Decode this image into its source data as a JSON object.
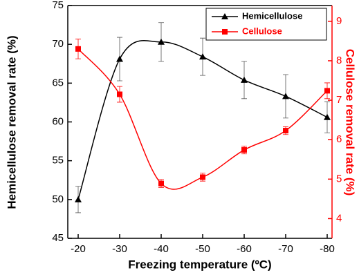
{
  "chart_data": {
    "type": "line",
    "x_label": "Freezing temperature (ºC)",
    "y_label": "Hemicellulose removal rate (%)",
    "y2_label": "Cellulose removal rate (%)",
    "categories": [
      "-20",
      "-30",
      "-40",
      "-50",
      "-60",
      "-70",
      "-80"
    ],
    "series": [
      {
        "name": "Hemicellulose",
        "color": "#000000",
        "marker": "triangle",
        "values": [
          50.0,
          68.1,
          70.3,
          68.4,
          65.4,
          63.3,
          60.6
        ],
        "errors": [
          1.7,
          2.8,
          2.5,
          2.4,
          2.4,
          2.8,
          2.0
        ]
      },
      {
        "name": "Cellulose",
        "color": "#ff0000",
        "marker": "square",
        "axis": "y2",
        "values": [
          8.3,
          7.15,
          4.89,
          5.05,
          5.74,
          6.23,
          7.24
        ],
        "errors": [
          0.25,
          0.2,
          0.1,
          0.1,
          0.1,
          0.1,
          0.2
        ]
      }
    ],
    "ylim": [
      45,
      75
    ],
    "yticks": [
      45,
      50,
      55,
      60,
      65,
      70,
      75
    ],
    "y2lim": [
      3.5,
      9.4
    ],
    "y2ticks": [
      4,
      5,
      6,
      7,
      8,
      9
    ],
    "y2_color": "#ff0000",
    "legend": "upper right"
  }
}
